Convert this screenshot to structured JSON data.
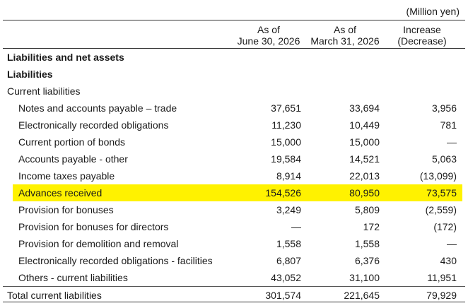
{
  "unit_note": "(Million yen)",
  "headers": {
    "col1": [
      "As of",
      "June 30, 2026"
    ],
    "col2": [
      "As of",
      "March 31, 2026"
    ],
    "col3": [
      "Increase",
      "(Decrease)"
    ]
  },
  "rows": [
    {
      "label": "Liabilities and net assets",
      "v1": "",
      "v2": "",
      "v3": "",
      "style": "bold"
    },
    {
      "label": "Liabilities",
      "v1": "",
      "v2": "",
      "v3": "",
      "style": "bold"
    },
    {
      "label": "Current liabilities",
      "v1": "",
      "v2": "",
      "v3": "",
      "style": ""
    },
    {
      "label": "Notes and accounts payable – trade",
      "v1": "37,651",
      "v2": "33,694",
      "v3": "3,956",
      "style": "indent"
    },
    {
      "label": "Electronically recorded obligations",
      "v1": "11,230",
      "v2": "10,449",
      "v3": "781",
      "style": "indent"
    },
    {
      "label": "Current portion of bonds",
      "v1": "15,000",
      "v2": "15,000",
      "v3": "—",
      "style": "indent"
    },
    {
      "label": "Accounts payable - other",
      "v1": "19,584",
      "v2": "14,521",
      "v3": "5,063",
      "style": "indent"
    },
    {
      "label": "Income taxes payable",
      "v1": "8,914",
      "v2": "22,013",
      "v3": "(13,099)",
      "style": "indent"
    },
    {
      "label": "Advances received",
      "v1": "154,526",
      "v2": "80,950",
      "v3": "73,575",
      "style": "indent highlight"
    },
    {
      "label": "Provision for bonuses",
      "v1": "3,249",
      "v2": "5,809",
      "v3": "(2,559)",
      "style": "indent"
    },
    {
      "label": "Provision for bonuses for directors",
      "v1": "—",
      "v2": "172",
      "v3": "(172)",
      "style": "indent"
    },
    {
      "label": "Provision for demolition and removal",
      "v1": "1,558",
      "v2": "1,558",
      "v3": "—",
      "style": "indent"
    },
    {
      "label": "Electronically recorded obligations - facilities",
      "v1": "6,807",
      "v2": "6,376",
      "v3": "430",
      "style": "indent"
    },
    {
      "label": "Others - current liabilities",
      "v1": "43,052",
      "v2": "31,100",
      "v3": "11,951",
      "style": "indent"
    },
    {
      "label": "Total current liabilities",
      "v1": "301,574",
      "v2": "221,645",
      "v3": "79,929",
      "style": "total"
    }
  ]
}
